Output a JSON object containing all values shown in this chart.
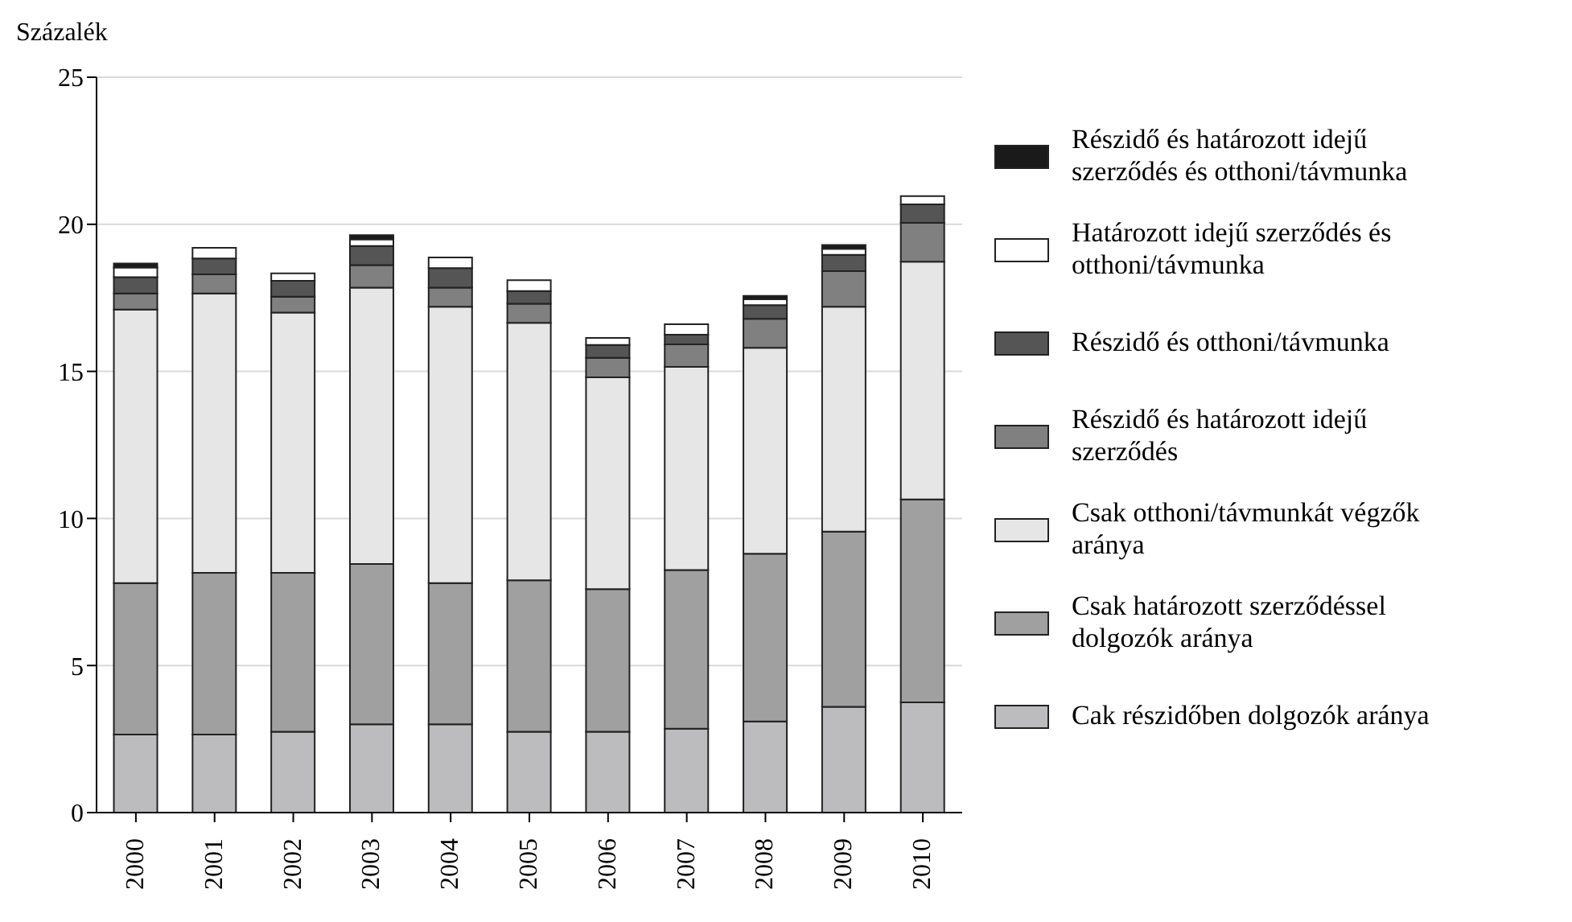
{
  "chart_data": {
    "type": "bar",
    "stacked": true,
    "ylabel": "Százalék",
    "categories": [
      "2000",
      "2001",
      "2002",
      "2003",
      "2004",
      "2005",
      "2006",
      "2007",
      "2008",
      "2009",
      "2010"
    ],
    "series": [
      {
        "name": "Cak részidőben dolgozók aránya",
        "color": "#bcbcbe",
        "values": [
          2.65,
          2.65,
          2.75,
          3.0,
          3.0,
          2.75,
          2.75,
          2.85,
          3.1,
          3.6,
          3.75
        ]
      },
      {
        "name": "Csak határozott szerződéssel dolgozók aránya",
        "color": "#a0a0a0",
        "values": [
          5.15,
          5.5,
          5.4,
          5.45,
          4.8,
          5.15,
          4.85,
          5.4,
          5.7,
          5.95,
          6.9
        ]
      },
      {
        "name": "Csak otthoni/távmunkát végzők aránya",
        "color": "#e6e6e6",
        "values": [
          9.3,
          9.5,
          8.85,
          9.4,
          9.4,
          8.75,
          7.2,
          6.9,
          7.0,
          7.65,
          8.08
        ]
      },
      {
        "name": "Részidő és határozott idejű szerződés",
        "color": "#808080",
        "values": [
          0.55,
          0.65,
          0.54,
          0.76,
          0.65,
          0.65,
          0.66,
          0.77,
          0.99,
          1.21,
          1.32
        ]
      },
      {
        "name": "Részidő és otthoni/távmunka",
        "color": "#555555",
        "values": [
          0.55,
          0.54,
          0.54,
          0.65,
          0.66,
          0.43,
          0.44,
          0.33,
          0.46,
          0.55,
          0.63
        ]
      },
      {
        "name": "Határozott idejű szerződés és otthoni/távmunka",
        "color": "#ffffff",
        "values": [
          0.33,
          0.36,
          0.25,
          0.23,
          0.36,
          0.37,
          0.24,
          0.35,
          0.2,
          0.21,
          0.28
        ]
      },
      {
        "name": "Részidő és határozott idejű szerződés és otthoni/távmunka",
        "color": "#1a1a1a",
        "values": [
          0.14,
          0,
          0,
          0.14,
          0,
          0,
          0,
          0,
          0.12,
          0.13,
          0
        ]
      }
    ],
    "ylim": [
      0,
      25
    ],
    "yticks": [
      0,
      5,
      10,
      15,
      20,
      25
    ],
    "grid": "y",
    "legend": "right"
  }
}
